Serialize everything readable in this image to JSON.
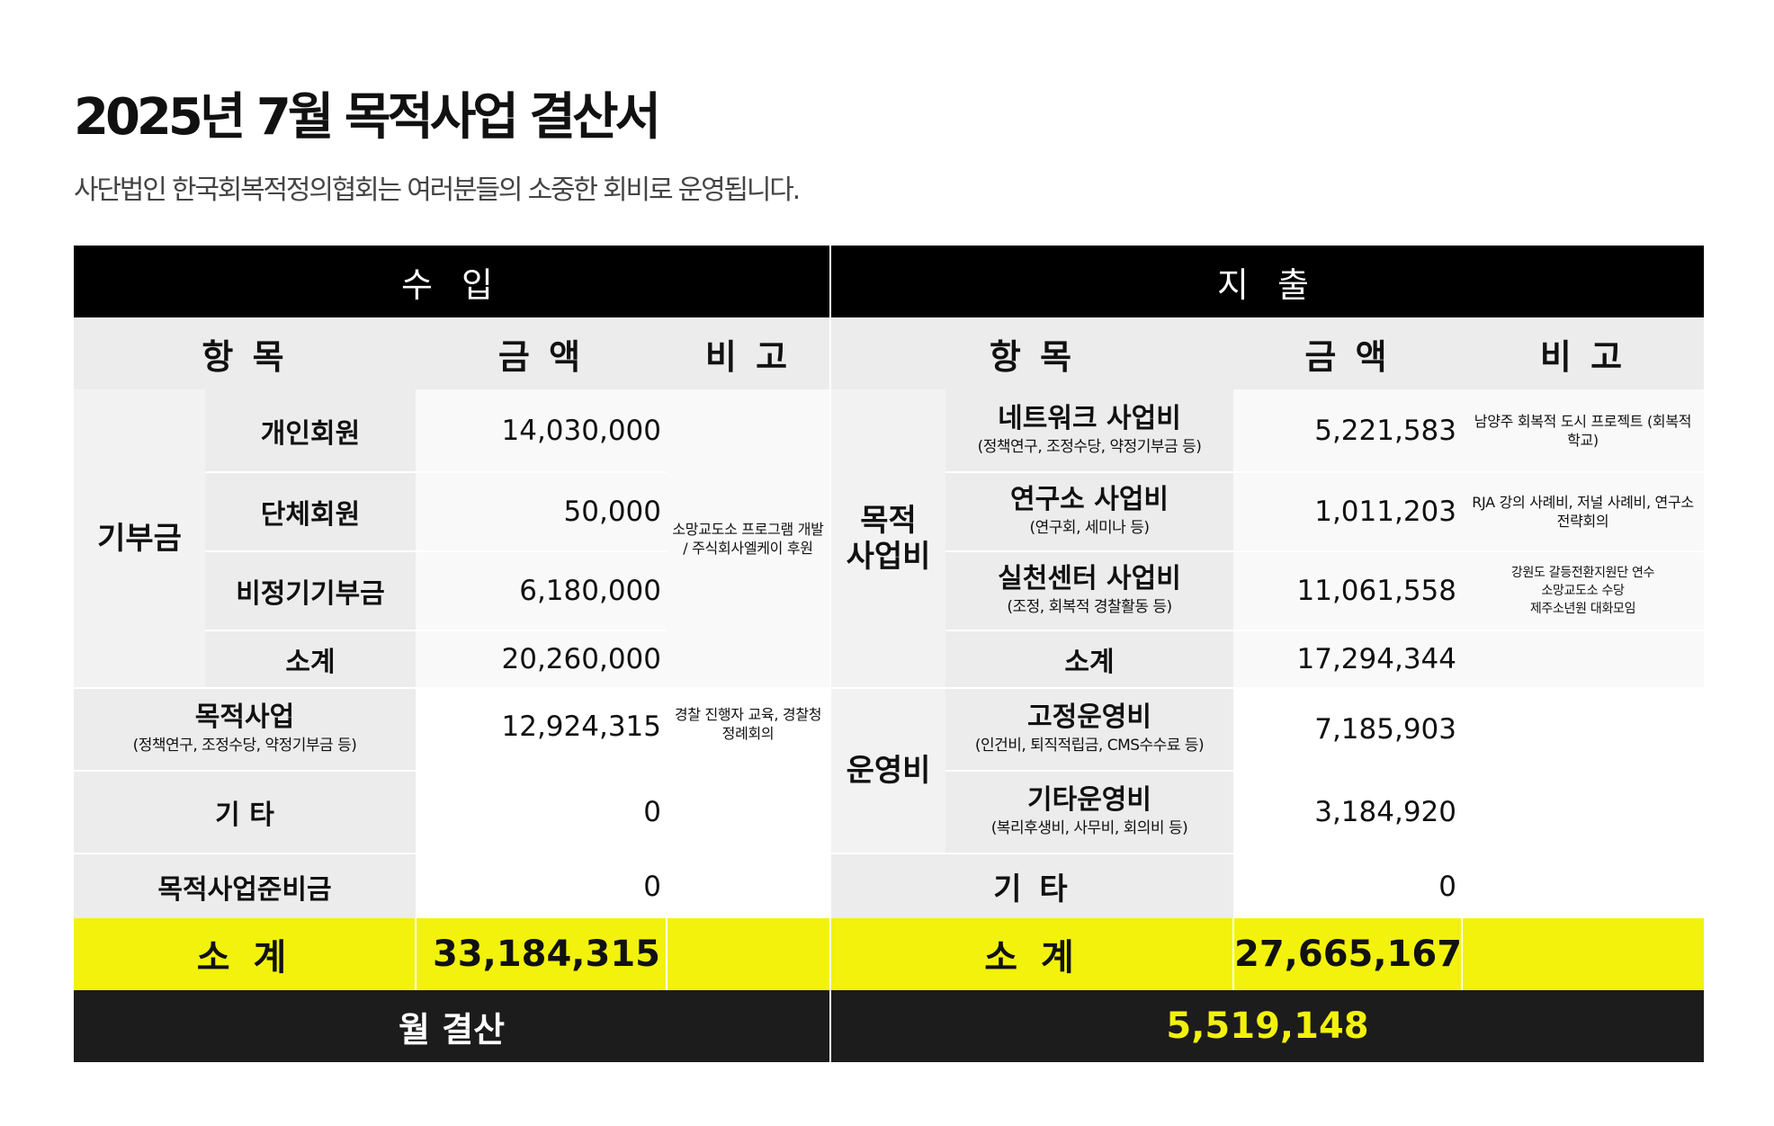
{
  "header": {
    "title": "2025년 7월 목적사업 결산서",
    "subtitle": "사단법인 한국회복적정의협회는 여러분들의 소중한 회비로 운영됩니다."
  },
  "table": {
    "income_label": "수 입",
    "expense_label": "지 출",
    "col_item": "항 목",
    "col_amount": "금 액",
    "col_note": "비 고",
    "income": {
      "donation_category": "기부금",
      "individual": {
        "label": "개인회원",
        "amount": "14,030,000"
      },
      "group": {
        "label": "단체회원",
        "amount": "50,000"
      },
      "irregular": {
        "label": "비정기기부금",
        "amount": "6,180,000",
        "note": "소망교도소 프로그램 개발 / 주식회사엘케이 후원"
      },
      "donation_subtotal": {
        "label": "소계",
        "amount": "20,260,000"
      },
      "purpose_business": {
        "label": "목적사업",
        "sub": "(정책연구, 조정수당, 약정기부금 등)",
        "amount": "12,924,315",
        "note": "경찰 진행자 교육, 경찰청 정례회의"
      },
      "other": {
        "label": "기 타",
        "amount": "0"
      },
      "reserve": {
        "label": "목적사업준비금",
        "amount": "0"
      },
      "total": {
        "label": "소 계",
        "amount": "33,184,315"
      }
    },
    "expense": {
      "purpose_category": "목적 사업비",
      "network": {
        "label": "네트워크 사업비",
        "sub": "(정책연구, 조정수당,  약정기부금 등)",
        "amount": "5,221,583",
        "note": "남양주 회복적 도시 프로젝트 (회복적 학교)"
      },
      "institute": {
        "label": "연구소 사업비",
        "sub": "(연구회, 세미나 등)",
        "amount": "1,011,203",
        "note": "RJA 강의 사례비, 저널 사례비, 연구소 전략회의"
      },
      "practice": {
        "label": "실천센터 사업비",
        "sub": "(조정, 회복적 경찰활동 등)",
        "amount": "11,061,558",
        "note_lines": [
          "강원도 갈등전환지원단 연수",
          "소망교도소 수당",
          "제주소년원 대화모임"
        ]
      },
      "purpose_subtotal": {
        "label": "소계",
        "amount": "17,294,344"
      },
      "operation_category": "운영비",
      "fixed": {
        "label": "고정운영비",
        "sub": "(인건비, 퇴직적립금, CMS수수료 등)",
        "amount": "7,185,903"
      },
      "misc_operation": {
        "label": "기타운영비",
        "sub": "(복리후생비, 사무비, 회의비 등)",
        "amount": "3,184,920"
      },
      "other": {
        "label": "기 타",
        "amount": "0"
      },
      "total": {
        "label": "소 계",
        "amount": "27,665,167"
      }
    },
    "monthly_label": "월 결산",
    "monthly_result": "5,519,148"
  },
  "colors": {
    "header_bar": "#000000",
    "highlight_yellow": "#f2f20d",
    "label_gray": "#ececec",
    "final_bar": "#1c1c1c"
  }
}
